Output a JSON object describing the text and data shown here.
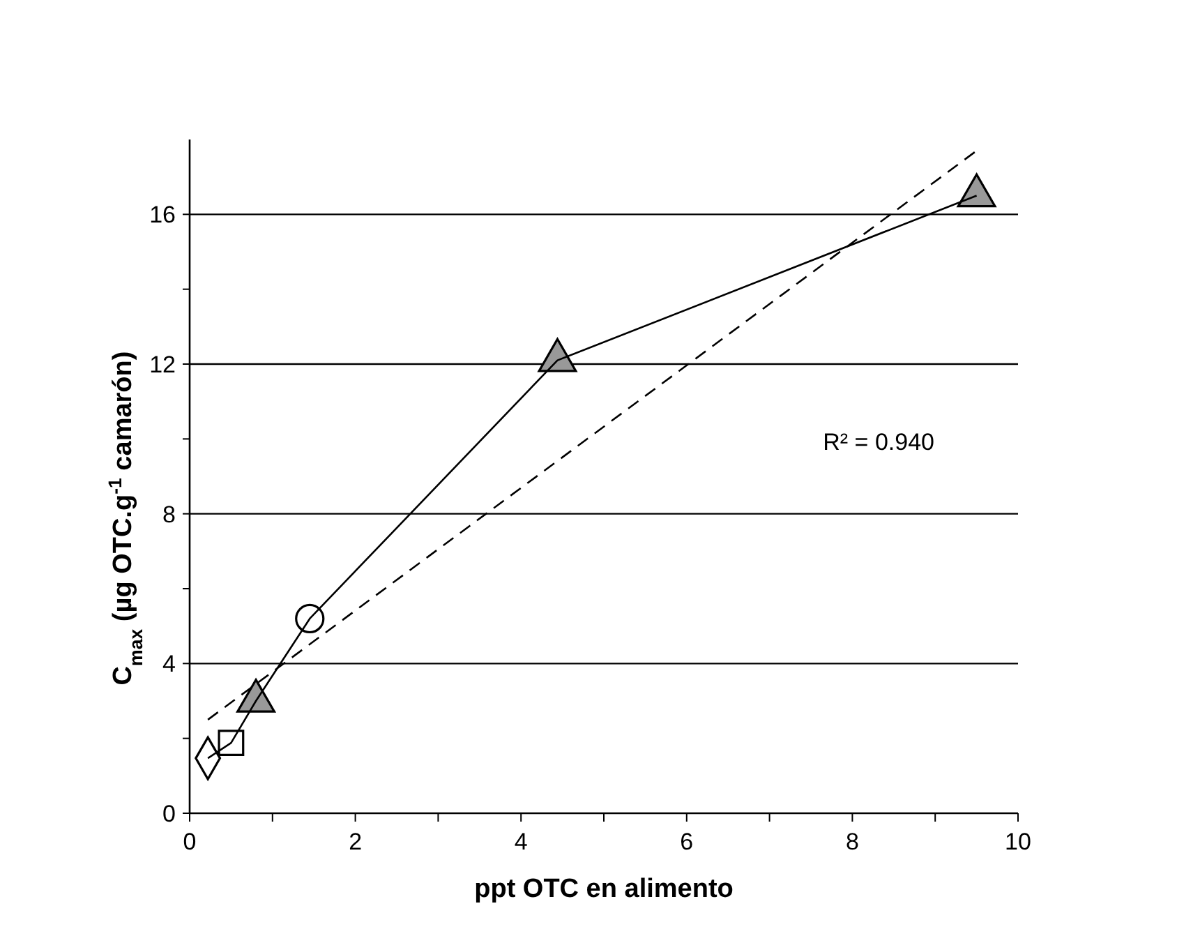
{
  "chart_data": {
    "type": "scatter",
    "xlabel": "ppt OTC en alimento",
    "ylabel": "C$_{max}$  (µg OTC.g$^{-1}$ camarón)",
    "xlim": [
      0,
      10
    ],
    "ylim": [
      0,
      18
    ],
    "xticks": [
      0,
      {
        "value": 1,
        "label": null
      },
      2,
      {
        "value": 3,
        "label": null
      },
      4,
      {
        "value": 5,
        "label": null
      },
      6,
      {
        "value": 7,
        "label": null
      },
      8,
      {
        "value": 9,
        "label": null
      },
      10
    ],
    "yticks": [
      0,
      {
        "value": 2,
        "label": null
      },
      4,
      {
        "value": 6,
        "label": null
      },
      8,
      {
        "value": 10,
        "label": null
      },
      12,
      {
        "value": 14,
        "label": null
      },
      16
    ],
    "grid": "y",
    "annotations": [
      "R² = 0.940"
    ],
    "series": [
      {
        "type": "line",
        "color": "#000000",
        "marker": "none",
        "line_style": "solid",
        "x": [
          0.22,
          0.5,
          0.8,
          1.45,
          4.44,
          9.5
        ],
        "values": [
          1.47,
          1.88,
          3.0,
          5.2,
          12.1,
          16.5
        ]
      },
      {
        "type": "line",
        "color": "#000000",
        "marker": "none",
        "line_style": "dashed",
        "x": [
          0.22,
          9.5
        ],
        "values": [
          2.5,
          17.7
        ]
      },
      {
        "color": "#ffffff",
        "marker": "diamond",
        "x": [
          0.22
        ],
        "values": [
          1.47
        ]
      },
      {
        "color": "#ffffff",
        "marker": "square",
        "x": [
          0.5
        ],
        "values": [
          1.88
        ]
      },
      {
        "color": "#999999",
        "marker": "triangle",
        "x": [
          0.8,
          4.44,
          9.5
        ],
        "values": [
          3.0,
          12.1,
          16.5
        ]
      },
      {
        "color": "#ffffff",
        "marker": "circle",
        "x": [
          1.45
        ],
        "values": [
          5.2
        ]
      }
    ]
  }
}
